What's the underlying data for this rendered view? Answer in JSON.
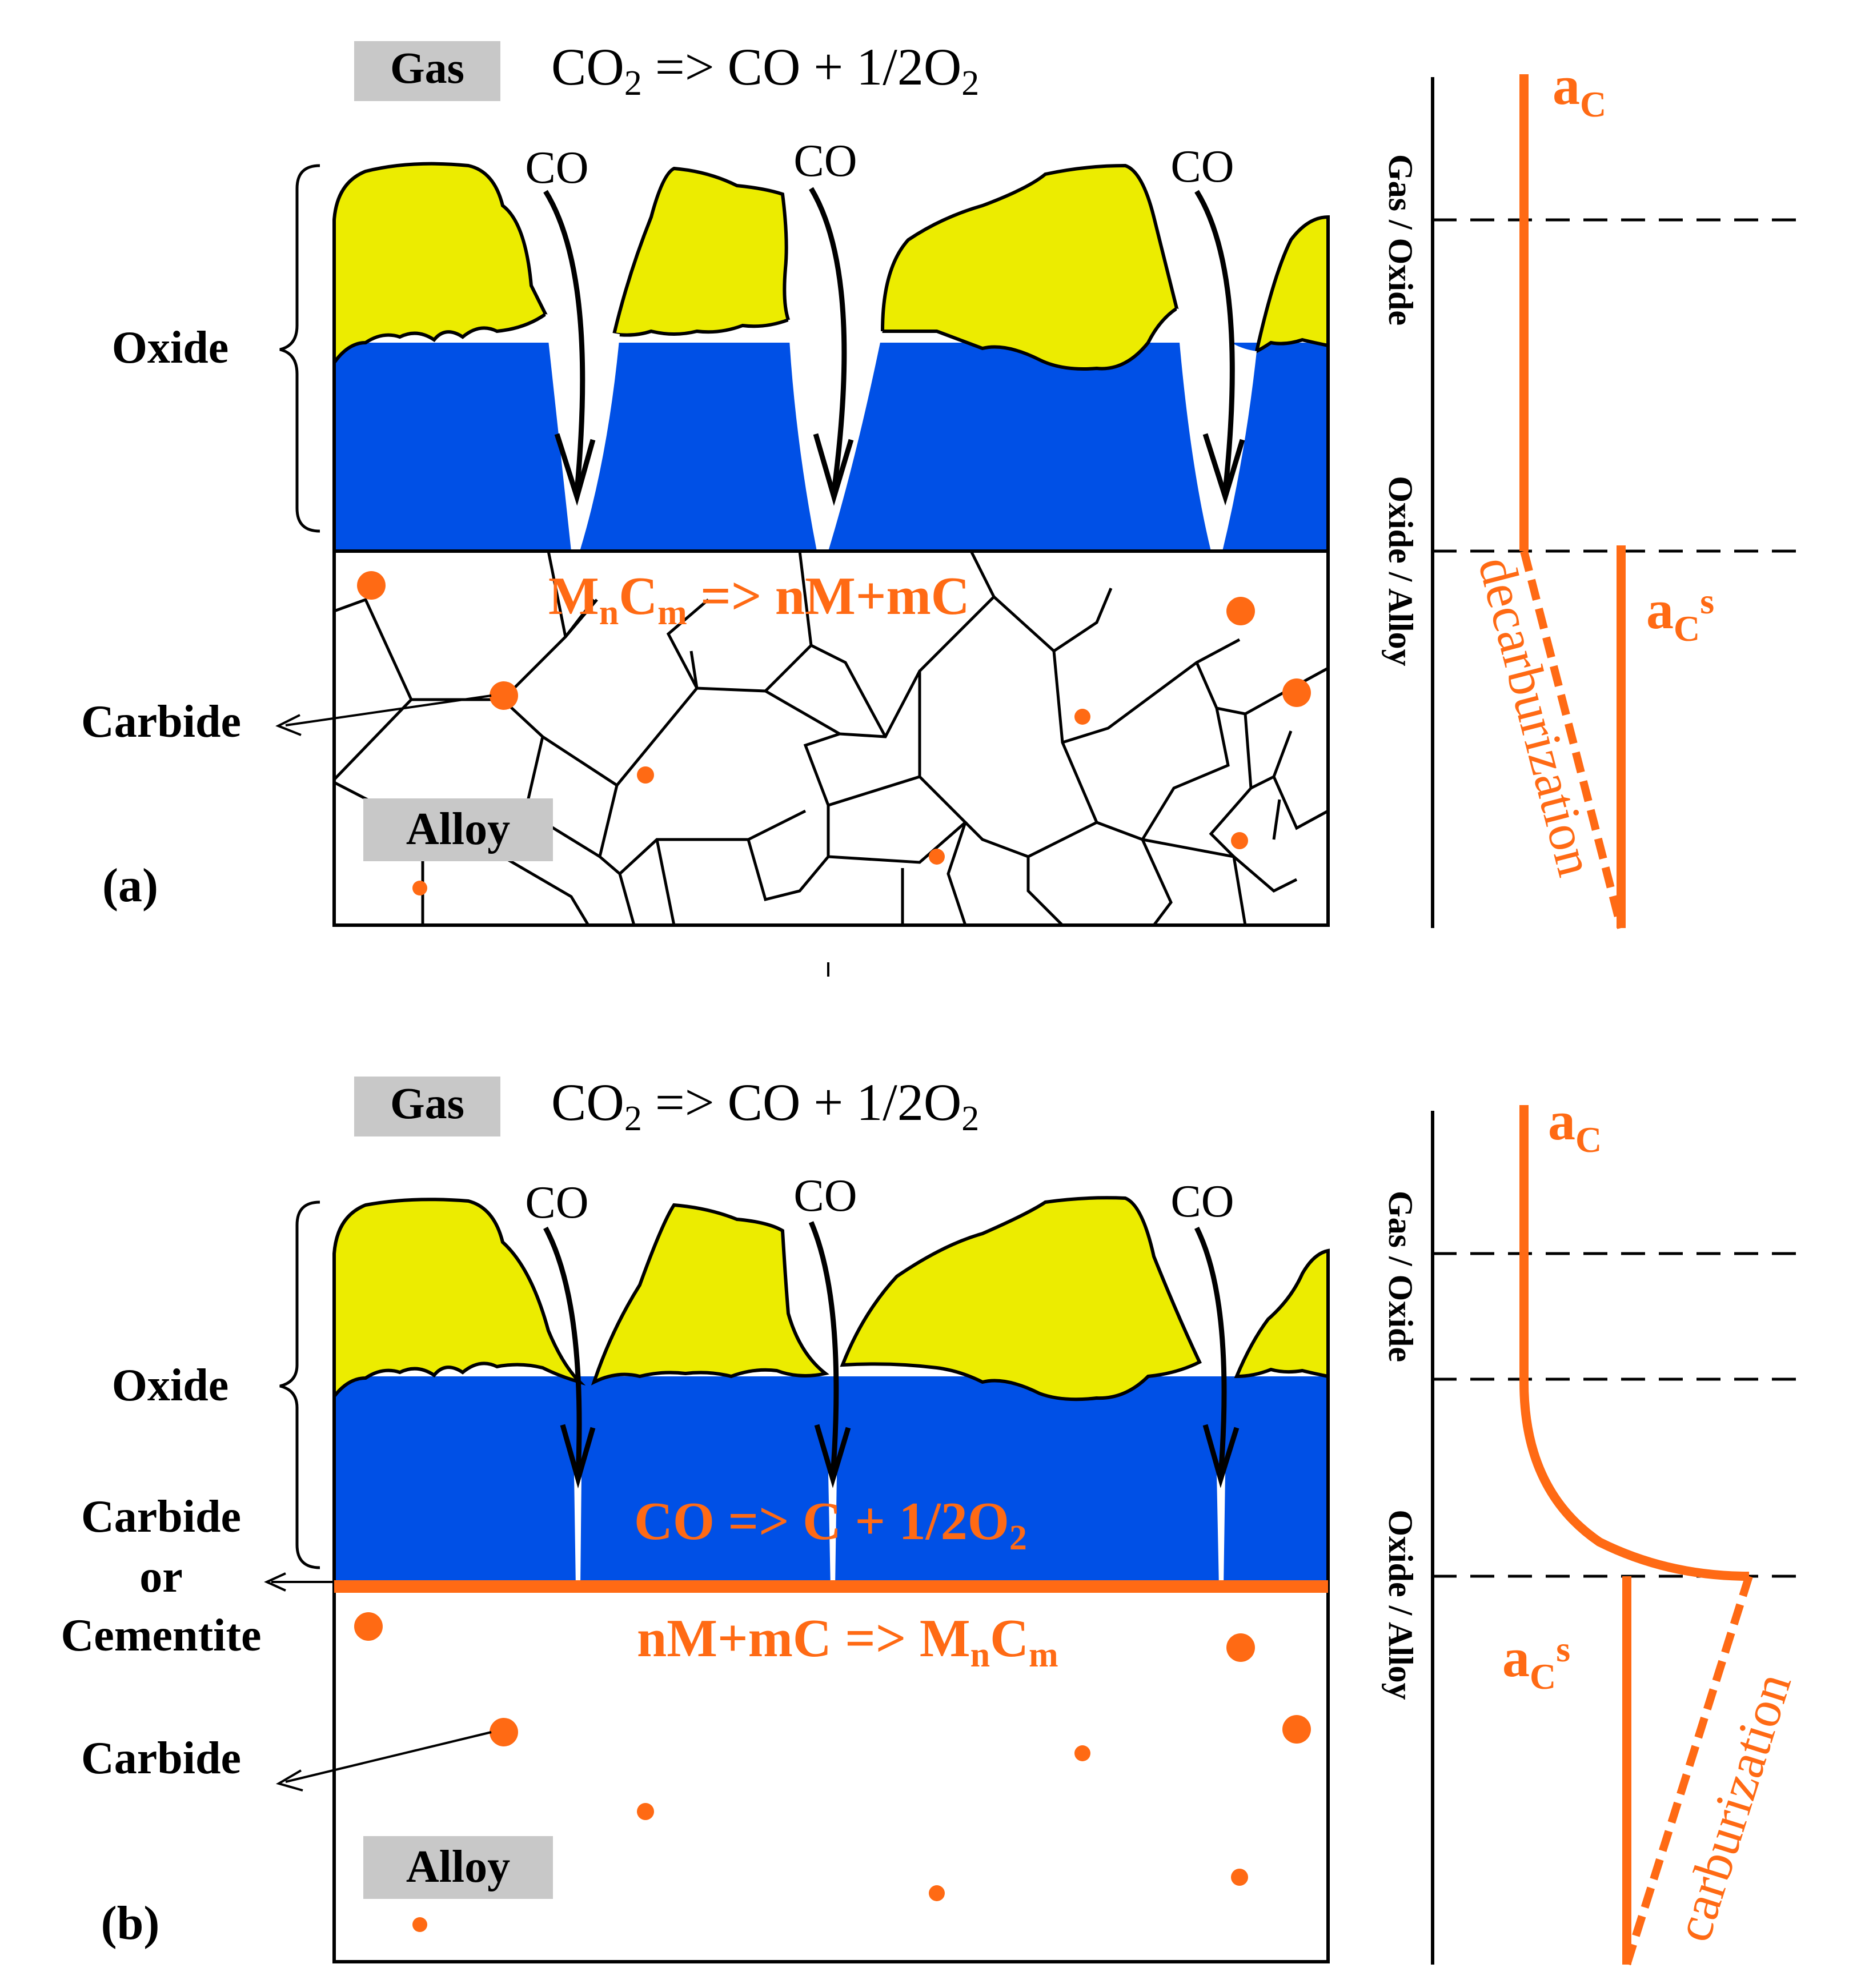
{
  "colors": {
    "oxide_outer": "#ecec00",
    "oxide_inner": "#0050e6",
    "carbon": "#ff6a14",
    "label_box": "#c8c8c8",
    "line": "#000000"
  },
  "panel_a": {
    "gas_label": "Gas",
    "reaction_gas": {
      "pre": "CO",
      "s1": "2",
      "mid": " => CO + 1/2O",
      "s2": "2"
    },
    "co_labels": [
      "CO",
      "CO",
      "CO"
    ],
    "oxide_label": "Oxide",
    "carbide_label": "Carbide",
    "alloy_label": "Alloy",
    "panel_label": "(a)",
    "carbide_reaction": {
      "a": "M",
      "b": "n",
      "c": "C",
      "d": "m",
      "e": " => nM+mC"
    },
    "profile": {
      "ac": {
        "base": "a",
        "sub": "C"
      },
      "acs": {
        "base": "a",
        "sub": "C",
        "sup": "s"
      },
      "interface_gas_oxide": "Gas / Oxide",
      "interface_oxide_alloy": "Oxide / Alloy",
      "curve_label": "decarburization"
    }
  },
  "panel_b": {
    "gas_label": "Gas",
    "reaction_gas": {
      "pre": "CO",
      "s1": "2",
      "mid": " => CO + 1/2O",
      "s2": "2"
    },
    "co_labels": [
      "CO",
      "CO",
      "CO"
    ],
    "oxide_label": "Oxide",
    "carbide_layer_label": [
      "Carbide",
      "or",
      "Cementite"
    ],
    "carbide_label": "Carbide",
    "alloy_label": "Alloy",
    "panel_label": "(b)",
    "co_reaction": {
      "a": "CO => C + 1/2O",
      "b": "2"
    },
    "carbide_reaction": {
      "a": "nM+mC => M",
      "b": "n",
      "c": "C",
      "d": "m"
    },
    "profile": {
      "ac": {
        "base": "a",
        "sub": "C"
      },
      "acs": {
        "base": "a",
        "sub": "C",
        "sup": "s"
      },
      "interface_gas_oxide": "Gas / Oxide",
      "interface_oxide_alloy": "Oxide / Alloy",
      "curve_label": "carburization"
    }
  }
}
